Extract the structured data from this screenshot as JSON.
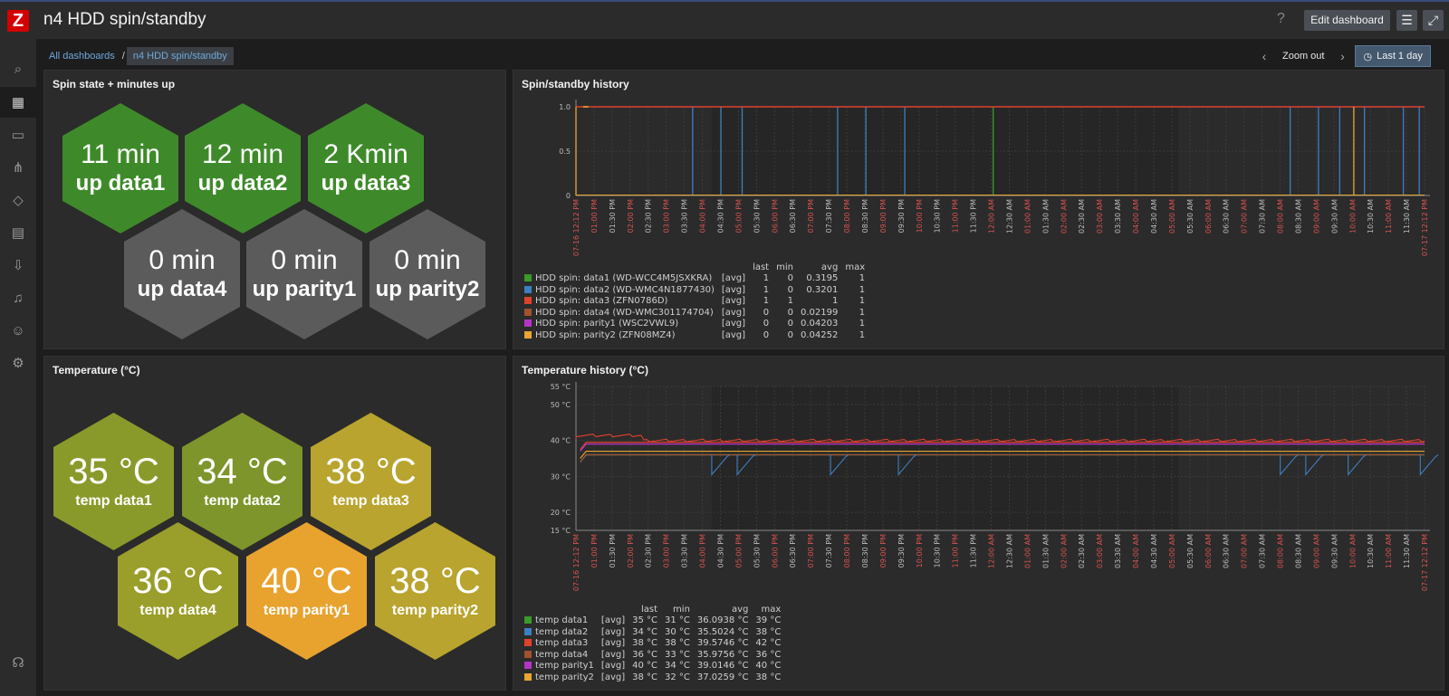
{
  "header": {
    "title": "n4 HDD spin/standby",
    "help_label": "?",
    "edit_label": "Edit dashboard"
  },
  "breadcrumb": {
    "root": "All dashboards",
    "separator": "/",
    "current": "n4 HDD spin/standby"
  },
  "timebar": {
    "zoom_out": "Zoom out",
    "period": "Last 1 day"
  },
  "sidebar": {
    "icons": [
      "search-icon",
      "dashboard-icon",
      "monitoring-icon",
      "network-icon",
      "inventory-icon",
      "reports-icon",
      "data-collection-icon",
      "alerts-icon",
      "users-icon",
      "settings-icon",
      "support-icon"
    ]
  },
  "panels": {
    "spin_state": {
      "title": "Spin state + minutes up",
      "hexes": [
        {
          "value": "11 min",
          "label": "up data1",
          "color": "#3e8a2a"
        },
        {
          "value": "12 min",
          "label": "up data2",
          "color": "#3e8a2a"
        },
        {
          "value": "2 Kmin",
          "label": "up data3",
          "color": "#3e8a2a"
        },
        {
          "value": "0 min",
          "label": "up data4",
          "color": "#5b5b5b"
        },
        {
          "value": "0 min",
          "label": "up parity1",
          "color": "#5b5b5b"
        },
        {
          "value": "0 min",
          "label": "up parity2",
          "color": "#5b5b5b"
        }
      ]
    },
    "spin_history": {
      "title": "Spin/standby history",
      "legend_headers": [
        "last",
        "min",
        "avg",
        "max"
      ],
      "legend": [
        {
          "name": "HDD spin: data1 (WD-WCC4M5JSXKRA)",
          "func": "[avg]",
          "last": "1",
          "min": "0",
          "avg": "0.3195",
          "max": "1",
          "color": "#3a9a2a"
        },
        {
          "name": "HDD spin: data2 (WD-WMC4N1877430)",
          "func": "[avg]",
          "last": "1",
          "min": "0",
          "avg": "0.3201",
          "max": "1",
          "color": "#3d7fc0"
        },
        {
          "name": "HDD spin: data3 (ZFN0786D)",
          "func": "[avg]",
          "last": "1",
          "min": "1",
          "avg": "1",
          "max": "1",
          "color": "#e0412c"
        },
        {
          "name": "HDD spin: data4 (WD-WMC301174704)",
          "func": "[avg]",
          "last": "0",
          "min": "0",
          "avg": "0.02199",
          "max": "1",
          "color": "#a0522d"
        },
        {
          "name": "HDD spin: parity1 (WSC2VWL9)",
          "func": "[avg]",
          "last": "0",
          "min": "0",
          "avg": "0.04203",
          "max": "1",
          "color": "#b534c8"
        },
        {
          "name": "HDD spin: parity2 (ZFN08MZ4)",
          "func": "[avg]",
          "last": "0",
          "min": "0",
          "avg": "0.04252",
          "max": "1",
          "color": "#e8a532"
        }
      ]
    },
    "temperature": {
      "title": "Temperature (°C)",
      "hexes": [
        {
          "value": "35 °C",
          "label": "temp data1",
          "color": "#8a9a2a"
        },
        {
          "value": "34 °C",
          "label": "temp data2",
          "color": "#7d952a"
        },
        {
          "value": "38 °C",
          "label": "temp data3",
          "color": "#b8a42e"
        },
        {
          "value": "36 °C",
          "label": "temp data4",
          "color": "#9a9e2a"
        },
        {
          "value": "40 °C",
          "label": "temp parity1",
          "color": "#e8a22e"
        },
        {
          "value": "38 °C",
          "label": "temp parity2",
          "color": "#b8a42e"
        }
      ]
    },
    "temp_history": {
      "title": "Temperature history (°C)",
      "legend_headers": [
        "last",
        "min",
        "avg",
        "max"
      ],
      "legend": [
        {
          "name": "temp data1",
          "func": "[avg]",
          "last": "35 °C",
          "min": "31 °C",
          "avg": "36.0938 °C",
          "max": "39 °C",
          "color": "#3a9a2a"
        },
        {
          "name": "temp data2",
          "func": "[avg]",
          "last": "34 °C",
          "min": "30 °C",
          "avg": "35.5024 °C",
          "max": "38 °C",
          "color": "#3d7fc0"
        },
        {
          "name": "temp data3",
          "func": "[avg]",
          "last": "38 °C",
          "min": "38 °C",
          "avg": "39.5746 °C",
          "max": "42 °C",
          "color": "#e0412c"
        },
        {
          "name": "temp data4",
          "func": "[avg]",
          "last": "36 °C",
          "min": "33 °C",
          "avg": "35.9756 °C",
          "max": "36 °C",
          "color": "#a0522d"
        },
        {
          "name": "temp parity1",
          "func": "[avg]",
          "last": "40 °C",
          "min": "34 °C",
          "avg": "39.0146 °C",
          "max": "40 °C",
          "color": "#b534c8"
        },
        {
          "name": "temp parity2",
          "func": "[avg]",
          "last": "38 °C",
          "min": "32 °C",
          "avg": "37.0259 °C",
          "max": "38 °C",
          "color": "#e8a532"
        }
      ]
    }
  },
  "chart_data": [
    {
      "type": "line",
      "title": "Spin/standby history",
      "ylim": [
        0,
        1
      ],
      "y_ticks": [
        "0",
        "0.5",
        "1.0"
      ],
      "x_ticks": [
        "07-16 12:12 PM",
        "01:00 PM",
        "01:30 PM",
        "02:00 PM",
        "02:30 PM",
        "03:00 PM",
        "03:30 PM",
        "04:00 PM",
        "04:30 PM",
        "05:00 PM",
        "05:30 PM",
        "06:00 PM",
        "06:30 PM",
        "07:00 PM",
        "07:30 PM",
        "08:00 PM",
        "08:30 PM",
        "09:00 PM",
        "09:30 PM",
        "10:00 PM",
        "10:30 PM",
        "11:00 PM",
        "11:30 PM",
        "12:00 AM",
        "12:30 AM",
        "01:00 AM",
        "01:30 AM",
        "02:00 AM",
        "02:30 AM",
        "03:00 AM",
        "03:30 AM",
        "04:00 AM",
        "04:30 AM",
        "05:00 AM",
        "05:30 AM",
        "06:00 AM",
        "06:30 AM",
        "07:00 AM",
        "07:30 AM",
        "08:00 AM",
        "08:30 AM",
        "09:00 AM",
        "09:30 AM",
        "10:00 AM",
        "10:30 AM",
        "11:00 AM",
        "11:30 AM",
        "07-17 12:12 PM"
      ],
      "x_tick_red": [
        0,
        1,
        3,
        5,
        7,
        9,
        11,
        13,
        15,
        17,
        19,
        21,
        23,
        25,
        27,
        29,
        31,
        33,
        35,
        37,
        39,
        41,
        43,
        45,
        47
      ],
      "series": [
        {
          "name": "HDD spin: data1 (WD-WCC4M5JSXKRA)",
          "color": "#3a9a2a",
          "spikes_hours": [
            11.8
          ]
        },
        {
          "name": "HDD spin: data2 (WD-WMC4N1877430)",
          "color": "#3d7fc0",
          "spikes_hours": [
            3.3,
            4.1,
            4.7,
            7.4,
            8.2,
            9.3,
            20.2,
            21.0,
            21.6,
            22.3,
            23.4,
            23.85
          ]
        },
        {
          "name": "HDD spin: data3 (ZFN0786D)",
          "color": "#e0412c",
          "constant": 1
        },
        {
          "name": "HDD spin: parity2 (ZFN08MZ4)",
          "color": "#e8a532",
          "spikes_hours": [
            0.0,
            22.0
          ]
        }
      ]
    },
    {
      "type": "line",
      "title": "Temperature history (°C)",
      "ylim": [
        15,
        55
      ],
      "y_ticks": [
        "15 °C",
        "20 °C",
        "30 °C",
        "40 °C",
        "50 °C",
        "55 °C"
      ],
      "x_ticks": [
        "07-16 12:12 PM",
        "01:00 PM",
        "01:30 PM",
        "02:00 PM",
        "02:30 PM",
        "03:00 PM",
        "03:30 PM",
        "04:00 PM",
        "04:30 PM",
        "05:00 PM",
        "05:30 PM",
        "06:00 PM",
        "06:30 PM",
        "07:00 PM",
        "07:30 PM",
        "08:00 PM",
        "08:30 PM",
        "09:00 PM",
        "09:30 PM",
        "10:00 PM",
        "10:30 PM",
        "11:00 PM",
        "11:30 PM",
        "12:00 AM",
        "12:30 AM",
        "01:00 AM",
        "01:30 AM",
        "02:00 AM",
        "02:30 AM",
        "03:00 AM",
        "03:30 AM",
        "04:00 AM",
        "04:30 AM",
        "05:00 AM",
        "05:30 AM",
        "06:00 AM",
        "06:30 AM",
        "07:00 AM",
        "07:30 AM",
        "08:00 AM",
        "08:30 AM",
        "09:00 AM",
        "09:30 AM",
        "10:00 AM",
        "10:30 AM",
        "11:00 AM",
        "11:30 AM",
        "07-17 12:12 PM"
      ],
      "x_tick_red": [
        0,
        1,
        3,
        5,
        7,
        9,
        11,
        13,
        15,
        17,
        19,
        21,
        23,
        25,
        27,
        29,
        31,
        33,
        35,
        37,
        39,
        41,
        43,
        45,
        47
      ],
      "series": [
        {
          "name": "temp data1",
          "color": "#3a9a2a",
          "level": 36
        },
        {
          "name": "temp data2",
          "color": "#3d7fc0",
          "level": 36
        },
        {
          "name": "temp data3",
          "color": "#e0412c",
          "level": 39.5
        },
        {
          "name": "temp data4",
          "color": "#a0522d",
          "level": 36
        },
        {
          "name": "temp parity1",
          "color": "#b534c8",
          "level": 39
        },
        {
          "name": "temp parity2",
          "color": "#e8a532",
          "level": 37
        }
      ]
    }
  ]
}
